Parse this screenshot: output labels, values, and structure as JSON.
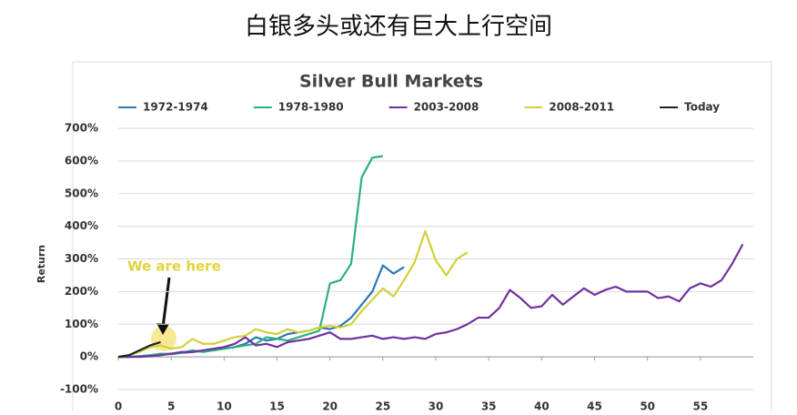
{
  "page_title": "白银多头或还有巨大上行空间",
  "chart_data": {
    "type": "line",
    "title": "Silver Bull Markets",
    "y_label": "Return",
    "annotation": "We are here",
    "x": [
      0,
      1,
      2,
      3,
      4,
      5,
      6,
      7,
      8,
      9,
      10,
      11,
      12,
      13,
      14,
      15,
      16,
      17,
      18,
      19,
      20,
      21,
      22,
      23,
      24,
      25,
      26,
      27,
      28,
      29,
      30,
      31,
      32,
      33,
      34,
      35,
      36,
      37,
      38,
      39,
      40,
      41,
      42,
      43,
      44,
      45,
      46,
      47,
      48,
      49,
      50,
      51,
      52,
      53,
      54,
      55,
      56,
      57,
      58,
      59
    ],
    "xlim": [
      0,
      60
    ],
    "xticks": [
      0,
      5,
      10,
      15,
      20,
      25,
      30,
      35,
      40,
      45,
      50,
      55
    ],
    "ylim": [
      -100,
      700
    ],
    "yticks": [
      {
        "value": -100,
        "label": "-100%"
      },
      {
        "value": 0,
        "label": "0%"
      },
      {
        "value": 100,
        "label": "100%"
      },
      {
        "value": 200,
        "label": "200%"
      },
      {
        "value": 300,
        "label": "300%"
      },
      {
        "value": 400,
        "label": "400%"
      },
      {
        "value": 500,
        "label": "500%"
      },
      {
        "value": 600,
        "label": "600%"
      },
      {
        "value": 700,
        "label": "700%"
      }
    ],
    "grid": true,
    "series": [
      {
        "name": "1972-1974",
        "color": "#2e75b6",
        "values": [
          0,
          0,
          2,
          5,
          8,
          10,
          12,
          15,
          18,
          20,
          25,
          30,
          40,
          60,
          50,
          55,
          70,
          75,
          80,
          90,
          85,
          95,
          120,
          160,
          200,
          280,
          255,
          275,
          null,
          null,
          null,
          null,
          null,
          null,
          null,
          null,
          null,
          null,
          null,
          null,
          null,
          null,
          null,
          null,
          null,
          null,
          null,
          null,
          null,
          null,
          null,
          null,
          null,
          null,
          null,
          null,
          null,
          null,
          null,
          null
        ]
      },
      {
        "name": "1978-1980",
        "color": "#2bb07f",
        "values": [
          0,
          0,
          2,
          5,
          10,
          8,
          12,
          20,
          15,
          20,
          25,
          30,
          35,
          40,
          60,
          55,
          50,
          60,
          70,
          80,
          225,
          235,
          285,
          550,
          610,
          615,
          null,
          null,
          null,
          null,
          null,
          null,
          null,
          null,
          null,
          null,
          null,
          null,
          null,
          null,
          null,
          null,
          null,
          null,
          null,
          null,
          null,
          null,
          null,
          null,
          null,
          null,
          null,
          null,
          null,
          null,
          null,
          null,
          null,
          null
        ]
      },
      {
        "name": "2003-2008",
        "color": "#7030a0",
        "values": [
          0,
          0,
          0,
          2,
          5,
          10,
          15,
          15,
          20,
          25,
          30,
          40,
          60,
          35,
          40,
          30,
          45,
          50,
          55,
          65,
          75,
          55,
          55,
          60,
          65,
          55,
          60,
          55,
          60,
          55,
          70,
          75,
          85,
          100,
          120,
          120,
          150,
          205,
          180,
          150,
          155,
          190,
          160,
          185,
          210,
          190,
          205,
          215,
          200,
          200,
          200,
          180,
          185,
          170,
          210,
          225,
          215,
          235,
          285,
          345
        ]
      },
      {
        "name": "2008-2011",
        "color": "#d4cf3a",
        "values": [
          0,
          5,
          15,
          30,
          35,
          25,
          30,
          55,
          40,
          40,
          50,
          60,
          65,
          85,
          75,
          70,
          85,
          75,
          80,
          90,
          95,
          90,
          100,
          140,
          175,
          210,
          185,
          235,
          290,
          385,
          295,
          250,
          300,
          320,
          null,
          null,
          null,
          null,
          null,
          null,
          null,
          null,
          null,
          null,
          null,
          null,
          null,
          null,
          null,
          null,
          null,
          null,
          null,
          null,
          null,
          null,
          null,
          null,
          null,
          null
        ]
      },
      {
        "name": "Today",
        "color": "#222222",
        "values": [
          0,
          5,
          20,
          35,
          45,
          null,
          null,
          null,
          null,
          null,
          null,
          null,
          null,
          null,
          null,
          null,
          null,
          null,
          null,
          null,
          null,
          null,
          null,
          null,
          null,
          null,
          null,
          null,
          null,
          null,
          null,
          null,
          null,
          null,
          null,
          null,
          null,
          null,
          null,
          null,
          null,
          null,
          null,
          null,
          null,
          null,
          null,
          null,
          null,
          null,
          null,
          null,
          null,
          null,
          null,
          null,
          null,
          null,
          null,
          null
        ]
      }
    ]
  }
}
